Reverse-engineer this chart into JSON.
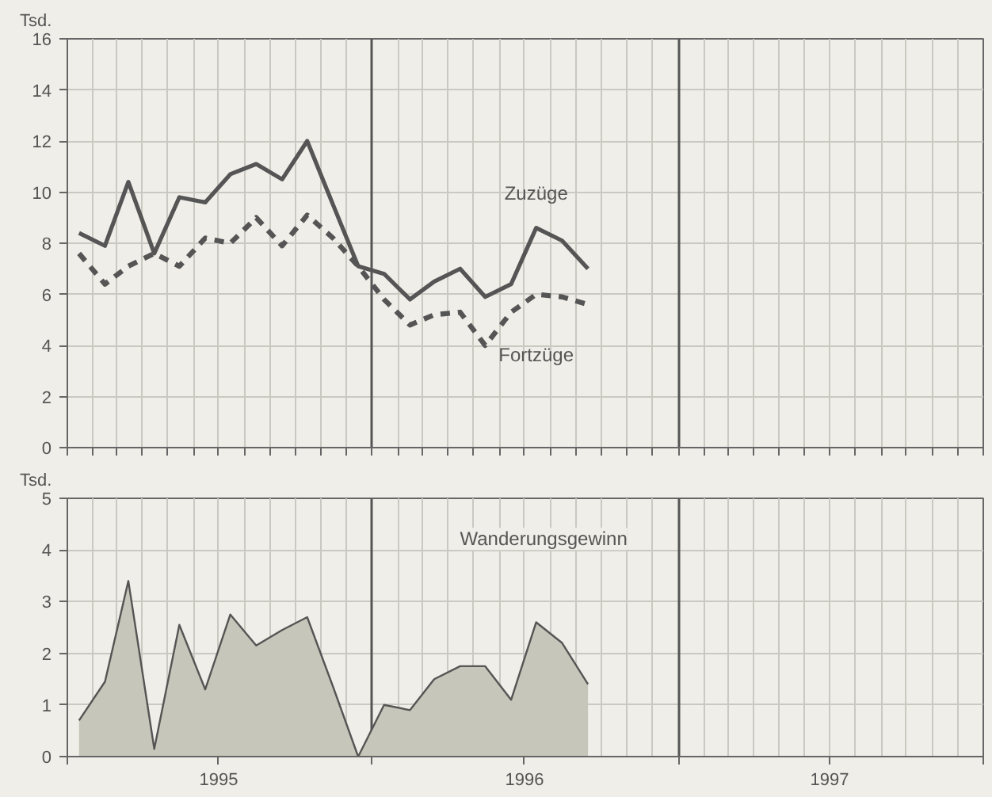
{
  "chart_data": [
    {
      "type": "line",
      "ylabel": "Tsd.",
      "x": [
        "1995-01-15",
        "1995-02-15",
        "1995-03-15",
        "1995-04-15",
        "1995-05-15",
        "1995-06-15",
        "1995-07-15",
        "1995-08-15",
        "1995-09-15",
        "1995-10-15",
        "1995-11-15",
        "1995-12-15",
        "1996-01-15",
        "1996-02-15",
        "1996-03-15",
        "1996-04-15",
        "1996-05-15",
        "1996-06-15",
        "1996-07-15",
        "1996-08-15",
        "1996-09-15"
      ],
      "series": [
        {
          "name": "Zuzüge",
          "color": "#555555",
          "line_style": "solid",
          "values": [
            8.4,
            7.9,
            10.4,
            7.6,
            9.8,
            9.6,
            10.7,
            11.1,
            10.5,
            12.0,
            9.5,
            7.1,
            6.8,
            5.8,
            6.5,
            7.0,
            5.9,
            6.4,
            8.6,
            8.1,
            7.0
          ]
        },
        {
          "name": "Fortzüge",
          "color": "#555555",
          "line_style": "dashed",
          "values": [
            7.6,
            6.4,
            7.1,
            7.6,
            7.1,
            8.2,
            8.0,
            9.0,
            7.9,
            9.1,
            8.2,
            7.1,
            5.8,
            4.8,
            5.2,
            5.3,
            4.0,
            5.3,
            6.0,
            5.9,
            5.6
          ]
        }
      ],
      "xlim": [
        "1995-01-01",
        "1998-01-01"
      ],
      "ylim": [
        0,
        16
      ],
      "yticks": [
        0,
        2,
        4,
        6,
        8,
        10,
        12,
        14,
        16
      ],
      "xticks": [
        {
          "value": "1995-01-01",
          "label": null
        },
        {
          "value": "1995-02-01",
          "label": null
        },
        {
          "value": "1995-03-01",
          "label": null
        },
        {
          "value": "1995-04-01",
          "label": null
        },
        {
          "value": "1995-05-01",
          "label": null
        },
        {
          "value": "1995-06-01",
          "label": null
        },
        {
          "value": "1995-07-01",
          "label": null
        },
        {
          "value": "1995-08-01",
          "label": null
        },
        {
          "value": "1995-09-01",
          "label": null
        },
        {
          "value": "1995-10-01",
          "label": null
        },
        {
          "value": "1995-11-01",
          "label": null
        },
        {
          "value": "1995-12-01",
          "label": null
        },
        {
          "value": "1996-01-01",
          "label": null
        },
        {
          "value": "1996-02-01",
          "label": null
        },
        {
          "value": "1996-03-01",
          "label": null
        },
        {
          "value": "1996-04-01",
          "label": null
        },
        {
          "value": "1996-05-01",
          "label": null
        },
        {
          "value": "1996-06-01",
          "label": null
        },
        {
          "value": "1996-07-01",
          "label": null
        },
        {
          "value": "1996-08-01",
          "label": null
        },
        {
          "value": "1996-09-01",
          "label": null
        },
        {
          "value": "1996-10-01",
          "label": null
        },
        {
          "value": "1996-11-01",
          "label": null
        },
        {
          "value": "1996-12-01",
          "label": null
        },
        {
          "value": "1997-01-01",
          "label": null
        },
        {
          "value": "1997-02-01",
          "label": null
        },
        {
          "value": "1997-03-01",
          "label": null
        },
        {
          "value": "1997-04-01",
          "label": null
        },
        {
          "value": "1997-05-01",
          "label": null
        },
        {
          "value": "1997-06-01",
          "label": null
        },
        {
          "value": "1997-07-01",
          "label": null
        },
        {
          "value": "1997-08-01",
          "label": null
        },
        {
          "value": "1997-09-01",
          "label": null
        },
        {
          "value": "1997-10-01",
          "label": null
        },
        {
          "value": "1997-11-01",
          "label": null
        },
        {
          "value": "1997-12-01",
          "label": null
        },
        {
          "value": "1998-01-01",
          "label": null
        }
      ],
      "grid": true,
      "tick_labels": "y"
    },
    {
      "type": "area",
      "ylabel": "Tsd.",
      "x": [
        "1995-01-15",
        "1995-02-15",
        "1995-03-15",
        "1995-04-15",
        "1995-05-15",
        "1995-06-15",
        "1995-07-15",
        "1995-08-15",
        "1995-09-15",
        "1995-10-15",
        "1995-11-15",
        "1995-12-15",
        "1996-01-15",
        "1996-02-15",
        "1996-03-15",
        "1996-04-15",
        "1996-05-15",
        "1996-06-15",
        "1996-07-15",
        "1996-08-15",
        "1996-09-15"
      ],
      "series": [
        {
          "name": "Wanderungsgewinn",
          "color": "#c6c6ba",
          "values": [
            0.7,
            1.45,
            3.4,
            0.15,
            2.55,
            1.3,
            2.75,
            2.15,
            2.45,
            2.7,
            1.35,
            0.0,
            1.0,
            0.9,
            1.5,
            1.75,
            1.75,
            1.1,
            2.6,
            2.2,
            1.4
          ]
        }
      ],
      "xlim": [
        "1995-01-01",
        "1998-01-01"
      ],
      "ylim": [
        0,
        5
      ],
      "yticks": [
        0,
        1,
        2,
        3,
        4,
        5
      ],
      "xticks": [
        {
          "value": "1995-01-01",
          "label": null
        },
        {
          "value": "1995-07-01",
          "label": "1995"
        },
        {
          "value": "1996-01-01",
          "label": null
        },
        {
          "value": "1996-07-01",
          "label": "1996"
        },
        {
          "value": "1997-01-01",
          "label": null
        },
        {
          "value": "1997-07-01",
          "label": "1997"
        },
        {
          "value": "1998-01-01",
          "label": null
        }
      ],
      "grid": true
    }
  ]
}
